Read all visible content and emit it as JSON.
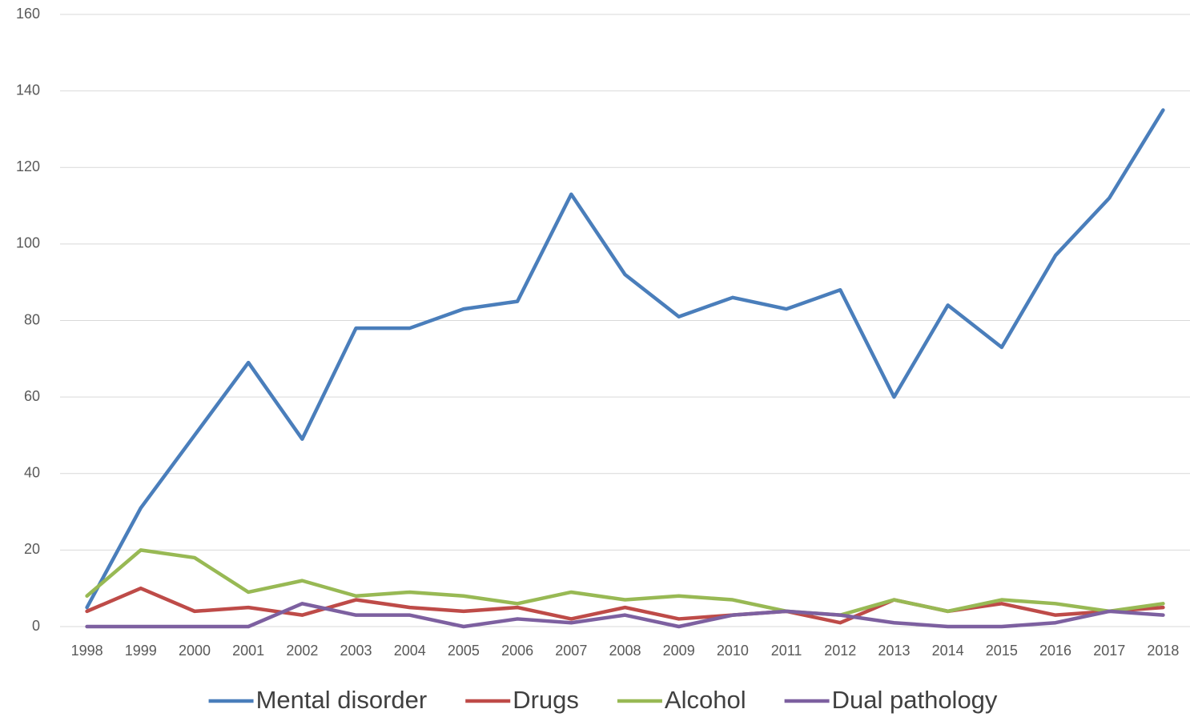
{
  "chart_data": {
    "type": "line",
    "categories": [
      "1998",
      "1999",
      "2000",
      "2001",
      "2002",
      "2003",
      "2004",
      "2005",
      "2006",
      "2007",
      "2008",
      "2009",
      "2010",
      "2011",
      "2012",
      "2013",
      "2014",
      "2015",
      "2016",
      "2017",
      "2018"
    ],
    "series": [
      {
        "name": "Mental disorder",
        "color": "#4a7ebb",
        "values": [
          5,
          31,
          50,
          69,
          49,
          78,
          78,
          83,
          85,
          113,
          92,
          81,
          86,
          83,
          88,
          60,
          84,
          73,
          97,
          112,
          135
        ]
      },
      {
        "name": "Drugs",
        "color": "#be4b48",
        "values": [
          4,
          10,
          4,
          5,
          3,
          7,
          5,
          4,
          5,
          2,
          5,
          2,
          3,
          4,
          1,
          7,
          4,
          6,
          3,
          4,
          5
        ]
      },
      {
        "name": "Alcohol",
        "color": "#98b954",
        "values": [
          8,
          20,
          18,
          9,
          12,
          8,
          9,
          8,
          6,
          9,
          7,
          8,
          7,
          4,
          3,
          7,
          4,
          7,
          6,
          4,
          6
        ]
      },
      {
        "name": "Dual pathology",
        "color": "#7d60a0",
        "values": [
          0,
          0,
          0,
          0,
          6,
          3,
          3,
          0,
          2,
          1,
          3,
          0,
          3,
          4,
          3,
          1,
          0,
          0,
          1,
          4,
          3
        ]
      }
    ],
    "ylim": [
      0,
      160
    ],
    "yticks": [
      0,
      20,
      40,
      60,
      80,
      100,
      120,
      140,
      160
    ],
    "grid": true,
    "legend": "bottom"
  }
}
